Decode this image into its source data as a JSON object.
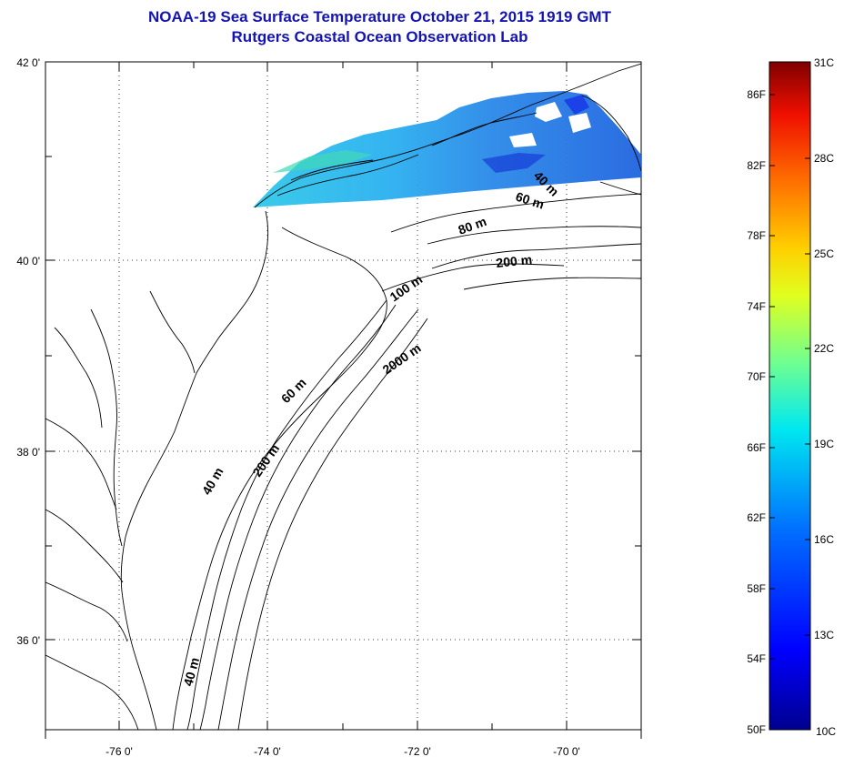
{
  "title": {
    "line1": "NOAA-19 Sea Surface Temperature October 21, 2015 1919 GMT",
    "line2": "Rutgers Coastal Ocean Observation Lab"
  },
  "map": {
    "lat_labels": [
      "42 0'",
      "40 0'",
      "38 0'",
      "36 0'"
    ],
    "lon_labels": [
      "-76 0'",
      "-74 0'",
      "-72 0'",
      "-70 0'"
    ],
    "depth_labels": [
      "40 m",
      "60 m",
      "80 m",
      "200 m",
      "100 m",
      "2000 m",
      "60 m",
      "200 m",
      "40 m",
      "40 m"
    ]
  },
  "colorbar": {
    "fahrenheit": [
      "86F",
      "82F",
      "78F",
      "74F",
      "70F",
      "66F",
      "62F",
      "58F",
      "54F",
      "50F"
    ],
    "celsius": [
      "31C",
      "28C",
      "25C",
      "22C",
      "19C",
      "16C",
      "13C",
      "10C"
    ],
    "colors": [
      "#00008f",
      "#0000ff",
      "#0080ff",
      "#00ffff",
      "#80ff80",
      "#ffff00",
      "#ff8000",
      "#ff0000",
      "#800000"
    ]
  },
  "colors": {
    "title": "#1414b4",
    "sst_patch": "#2a7fe0"
  }
}
